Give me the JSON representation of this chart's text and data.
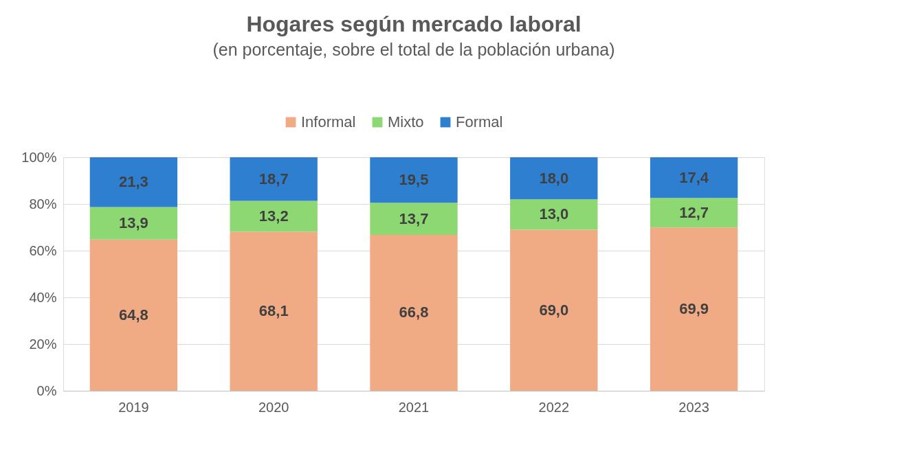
{
  "chart_data": {
    "type": "bar",
    "stacked": true,
    "title": "Hogares según mercado laboral",
    "subtitle": "(en porcentaje, sobre el total de la población urbana)",
    "categories": [
      "2019",
      "2020",
      "2021",
      "2022",
      "2023"
    ],
    "series": [
      {
        "name": "Informal",
        "color": "#f0aa84",
        "values": [
          64.8,
          68.1,
          66.8,
          69.0,
          69.9
        ],
        "value_labels": [
          "64,8",
          "68,1",
          "66,8",
          "69,0",
          "69,9"
        ]
      },
      {
        "name": "Mixto",
        "color": "#8ed873",
        "values": [
          13.9,
          13.2,
          13.7,
          13.0,
          12.7
        ],
        "value_labels": [
          "13,9",
          "13,2",
          "13,7",
          "13,0",
          "12,7"
        ]
      },
      {
        "name": "Formal",
        "color": "#2e7fd0",
        "values": [
          21.3,
          18.7,
          19.5,
          18.0,
          17.4
        ],
        "value_labels": [
          "21,3",
          "18,7",
          "19,5",
          "18,0",
          "17,4"
        ]
      }
    ],
    "ylim": [
      0,
      100
    ],
    "yticks": [
      {
        "value": 0,
        "label": "0%"
      },
      {
        "value": 20,
        "label": "20%"
      },
      {
        "value": 40,
        "label": "40%"
      },
      {
        "value": 60,
        "label": "60%"
      },
      {
        "value": 80,
        "label": "80%"
      },
      {
        "value": 100,
        "label": "100%"
      }
    ],
    "grid": "y",
    "legend": "top"
  }
}
